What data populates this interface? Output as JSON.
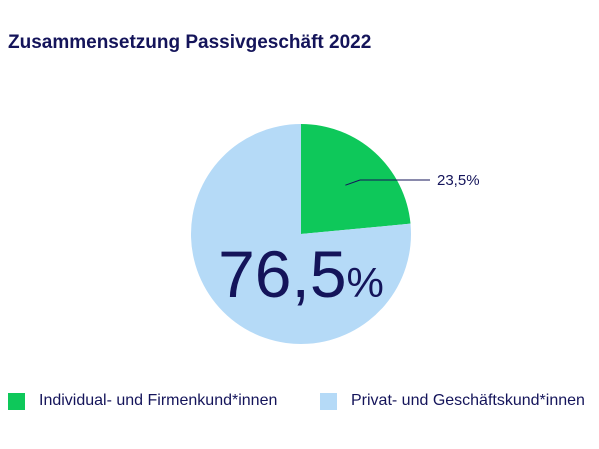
{
  "chart_data": {
    "type": "pie",
    "title": "Zusammensetzung Passivgeschäft 2022",
    "slices": [
      {
        "label": "Individual- und Firmenkund*innen",
        "value": 23.5,
        "display": "23,5%",
        "color": "#0ec85a"
      },
      {
        "label": "Privat- und Geschäftskund*innen",
        "value": 76.5,
        "display": "76,5",
        "color": "#b5daf7"
      }
    ],
    "big_label_unit": "%",
    "legend_position": "bottom"
  }
}
